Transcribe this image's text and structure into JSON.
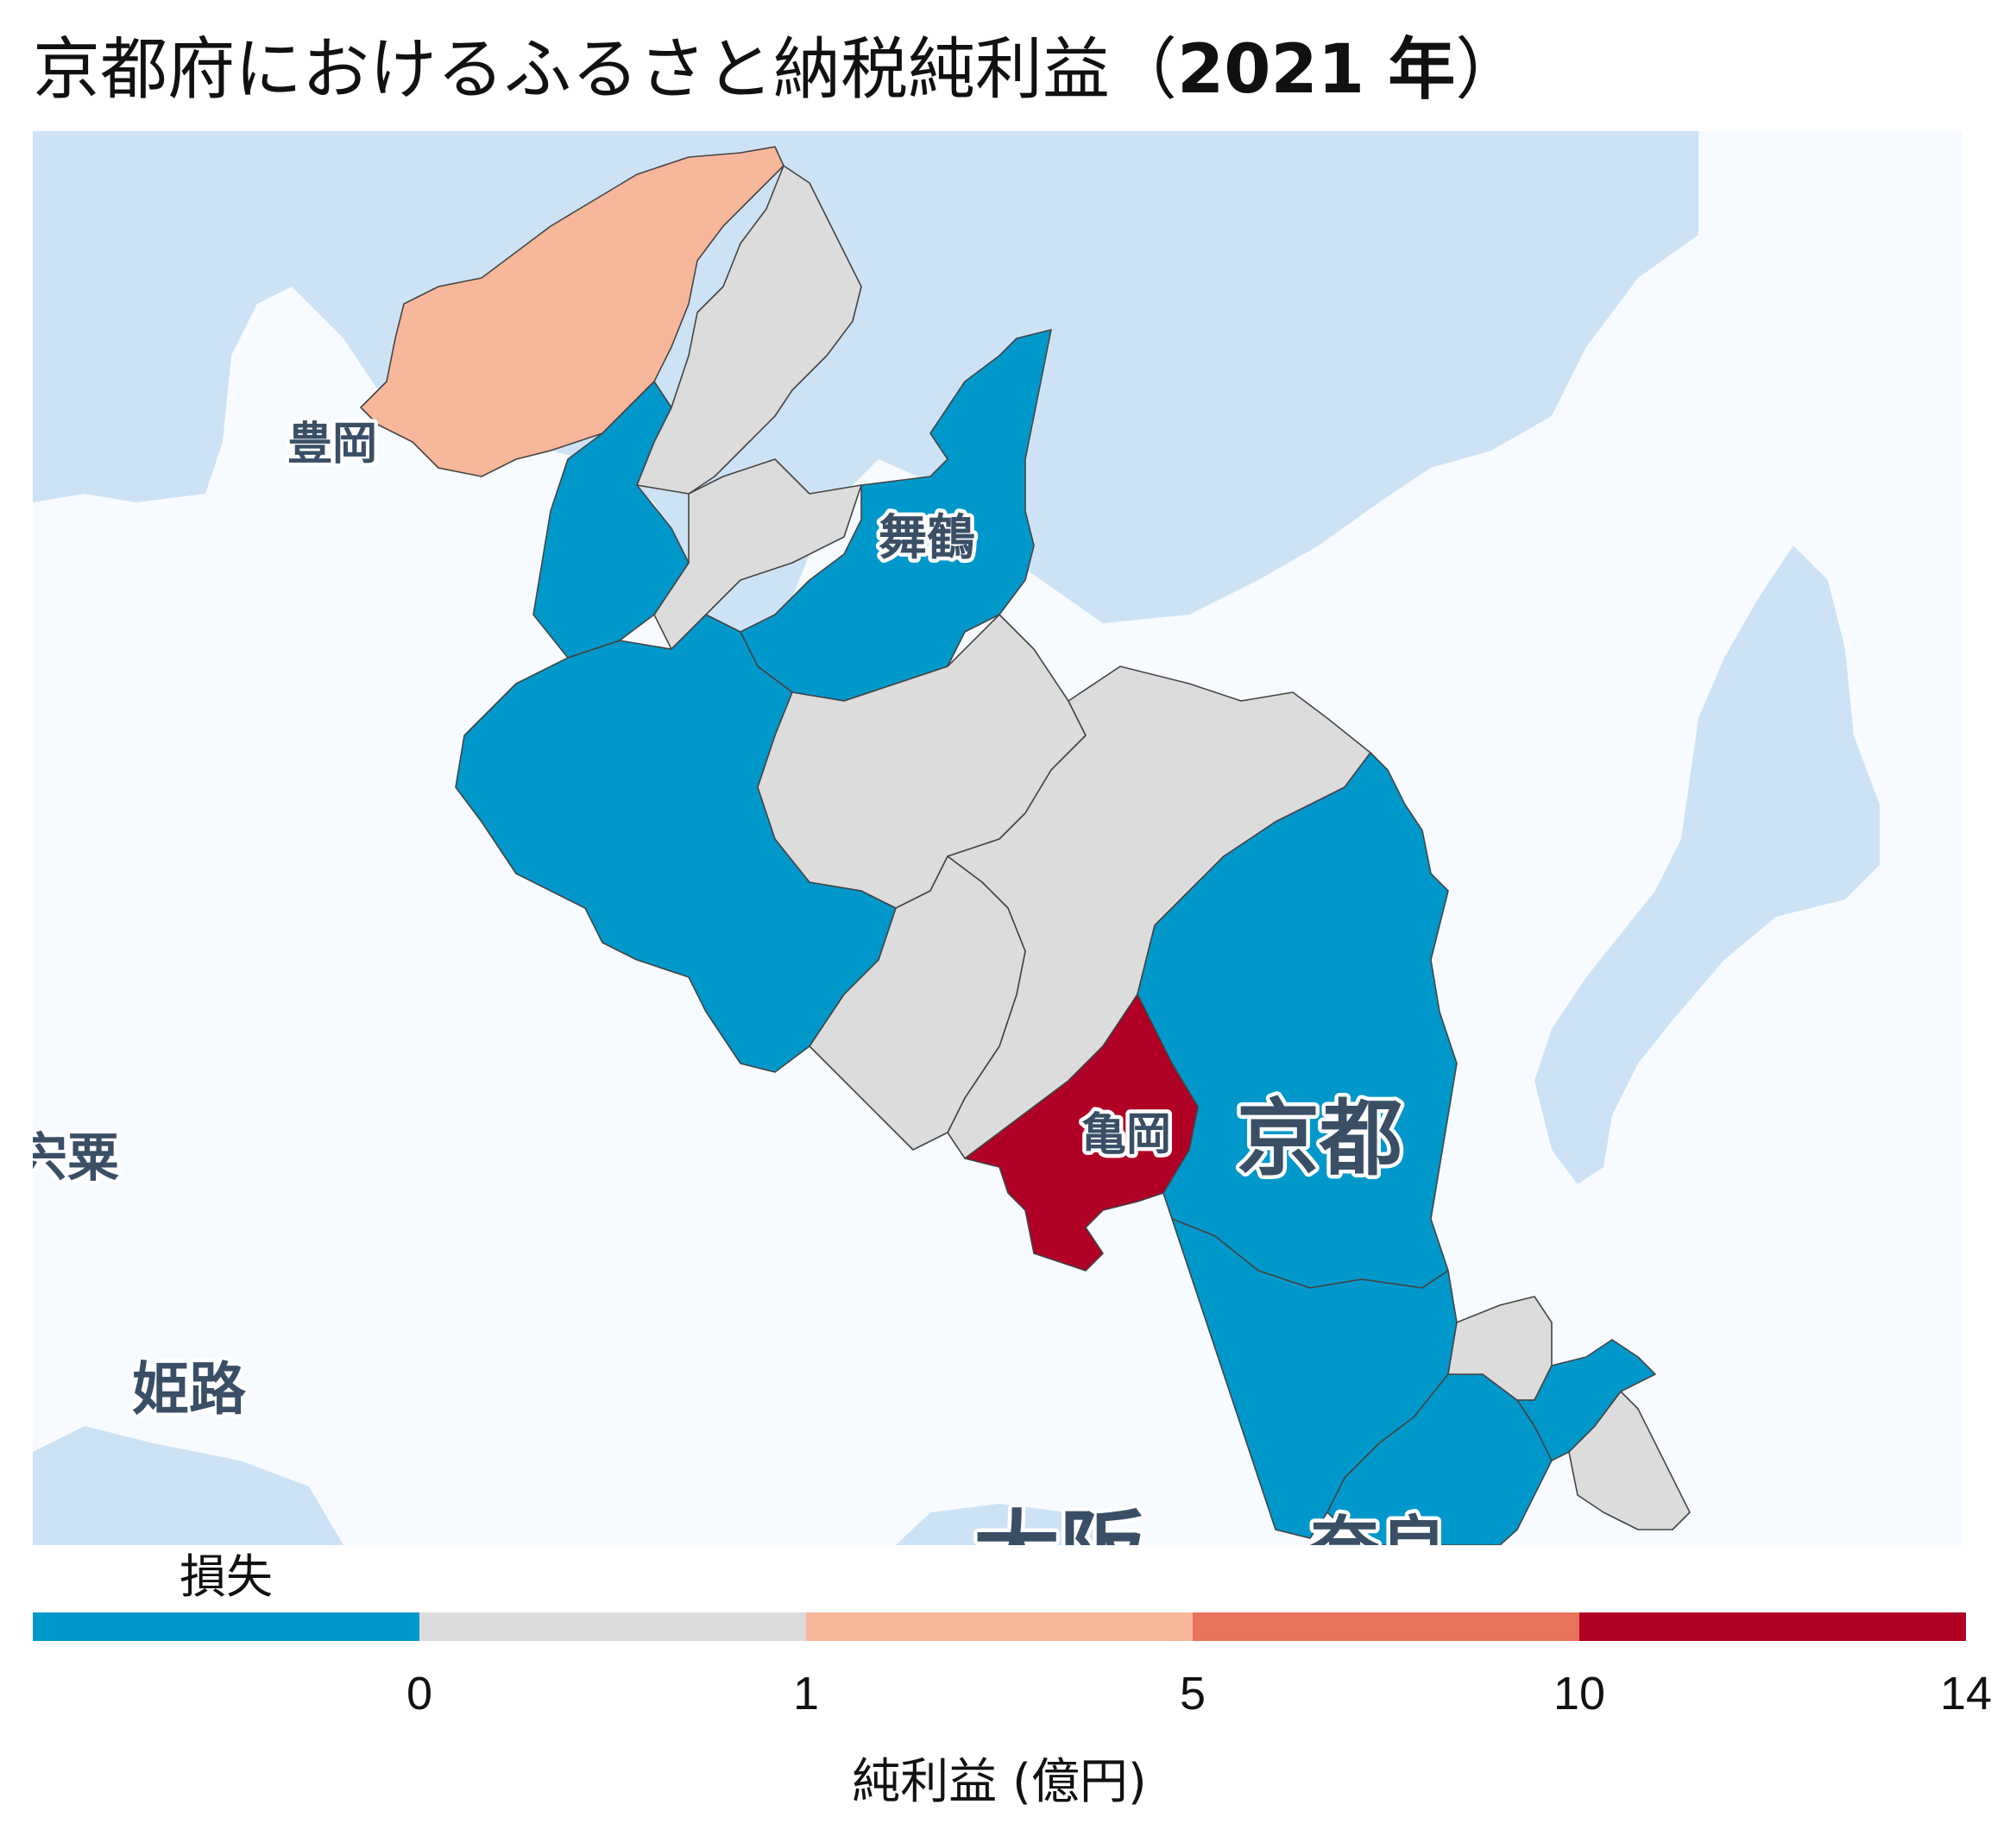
{
  "title": {
    "main": "京都府におけるふるさと納税純利益（",
    "year": "2021 年",
    "close": "）"
  },
  "map": {
    "colors": {
      "water": "#cde3f5",
      "land": "#f7fbff",
      "loss": "#0098cb",
      "zero_to_1": "#dcdcdc",
      "one_to_5": "#f7b79a",
      "five_to_10": "#e7735b",
      "ten_plus": "#b10026",
      "border": "#444444"
    },
    "place_labels": {
      "toyooka": "豊岡",
      "maizuru": "舞鶴",
      "kameoka": "亀岡",
      "kyoto": "京都",
      "shiso": "宍粟",
      "himeji": "姫路",
      "osaka": "大阪",
      "nara": "奈良"
    }
  },
  "legend": {
    "loss_label": "損失",
    "ticks": [
      "0",
      "1",
      "5",
      "10",
      "14"
    ],
    "axis_title": "純利益 (億円)",
    "bins": [
      {
        "range": "損失",
        "color": "#0098cb"
      },
      {
        "range": "0–1",
        "color": "#dcdcdc"
      },
      {
        "range": "1–5",
        "color": "#f7b79a"
      },
      {
        "range": "5–10",
        "color": "#e7735b"
      },
      {
        "range": "10–14",
        "color": "#b10026"
      }
    ]
  }
}
